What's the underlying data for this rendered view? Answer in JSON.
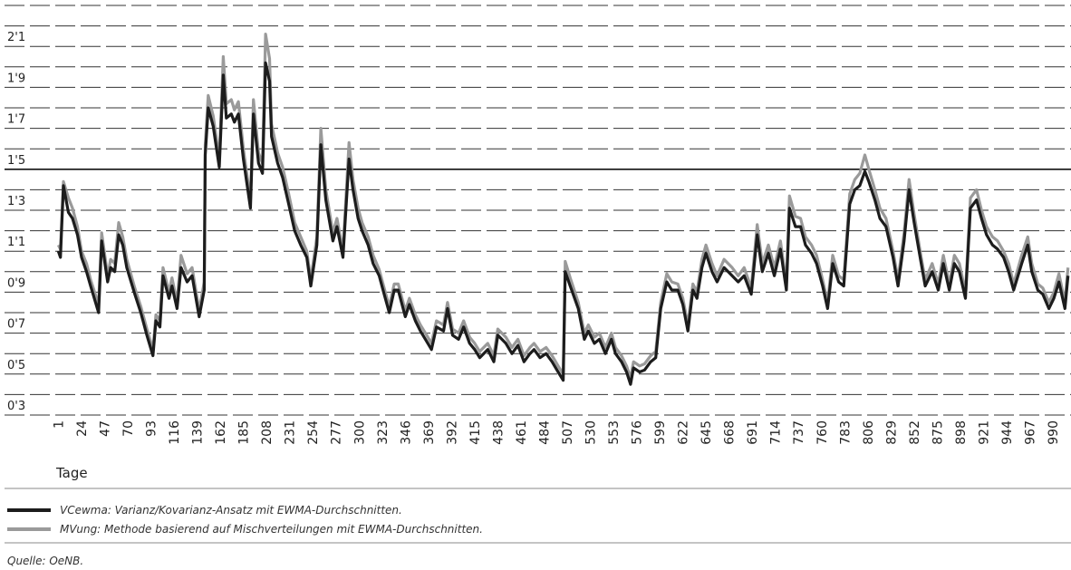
{
  "chart_data": {
    "type": "line",
    "x_label": "Tage",
    "xlim": [
      -3,
      1008
    ],
    "xticks": [
      1,
      24,
      47,
      70,
      93,
      116,
      139,
      162,
      185,
      208,
      231,
      254,
      277,
      300,
      323,
      346,
      369,
      392,
      415,
      438,
      461,
      484,
      507,
      530,
      553,
      576,
      599,
      622,
      645,
      668,
      691,
      714,
      737,
      760,
      783,
      806,
      829,
      852,
      875,
      898,
      921,
      944,
      967,
      990
    ],
    "ylim": [
      0.3,
      2.3
    ],
    "yticks": [
      {
        "value": 0.3,
        "label": "0'3"
      },
      {
        "value": 0.5,
        "label": "0'5"
      },
      {
        "value": 0.7,
        "label": "0'7"
      },
      {
        "value": 0.9,
        "label": "0'9"
      },
      {
        "value": 1.1,
        "label": "1'1"
      },
      {
        "value": 1.3,
        "label": "1'3"
      },
      {
        "value": 1.5,
        "label": "1'5"
      },
      {
        "value": 1.7,
        "label": "1'7"
      },
      {
        "value": 1.9,
        "label": "1'9"
      },
      {
        "value": 2.1,
        "label": "2'1"
      }
    ],
    "ygrid": [
      0.3,
      0.4,
      0.5,
      0.6,
      0.7,
      0.8,
      0.9,
      1.0,
      1.1,
      1.2,
      1.3,
      1.4,
      1.5,
      1.6,
      1.7,
      1.8,
      1.9,
      2.0,
      2.1,
      2.2,
      2.3
    ],
    "grid": true,
    "reference_line": 1.5,
    "x": [
      1,
      3,
      6,
      11,
      15,
      20,
      24,
      29,
      33,
      41,
      44,
      50,
      53,
      57,
      61,
      65,
      69,
      77,
      83,
      89,
      95,
      98,
      102,
      105,
      111,
      114,
      119,
      123,
      129,
      134,
      141,
      146,
      147,
      150,
      155,
      161,
      165,
      168,
      173,
      176,
      180,
      185,
      192,
      195,
      200,
      204,
      207,
      211,
      213,
      219,
      224,
      230,
      236,
      242,
      248,
      252,
      258,
      262,
      267,
      274,
      278,
      284,
      290,
      294,
      299,
      303,
      309,
      314,
      320,
      325,
      330,
      335,
      339,
      346,
      350,
      356,
      361,
      366,
      372,
      377,
      384,
      388,
      393,
      399,
      404,
      410,
      415,
      420,
      428,
      434,
      438,
      446,
      452,
      458,
      464,
      470,
      474,
      480,
      486,
      492,
      498,
      503,
      505,
      510,
      518,
      524,
      528,
      534,
      539,
      545,
      551,
      555,
      561,
      566,
      570,
      573,
      579,
      584,
      590,
      595,
      600,
      606,
      611,
      617,
      622,
      627,
      632,
      636,
      641,
      645,
      651,
      656,
      663,
      671,
      677,
      683,
      690,
      696,
      701,
      707,
      713,
      719,
      725,
      728,
      734,
      739,
      744,
      750,
      755,
      761,
      766,
      771,
      777,
      782,
      788,
      793,
      798,
      803,
      807,
      813,
      818,
      824,
      831,
      836,
      842,
      847,
      852,
      858,
      863,
      870,
      876,
      881,
      887,
      892,
      897,
      903,
      908,
      914,
      919,
      924,
      930,
      935,
      941,
      946,
      951,
      959,
      965,
      969,
      975,
      980,
      986,
      991,
      996,
      1002,
      1005
    ],
    "series": [
      {
        "name": "VCewma: Varianz/Kovarianz-Ansatz mit EWMA-Durchschnitten.",
        "color": "#1c1c1c",
        "values": [
          1.1,
          1.07,
          1.42,
          1.29,
          1.26,
          1.18,
          1.07,
          1.0,
          0.93,
          0.8,
          1.15,
          0.95,
          1.02,
          1.0,
          1.18,
          1.13,
          1.02,
          0.89,
          0.8,
          0.69,
          0.59,
          0.76,
          0.73,
          0.98,
          0.87,
          0.93,
          0.82,
          1.02,
          0.95,
          0.98,
          0.78,
          0.91,
          1.57,
          1.8,
          1.71,
          1.51,
          1.96,
          1.75,
          1.77,
          1.73,
          1.77,
          1.55,
          1.31,
          1.77,
          1.53,
          1.48,
          2.02,
          1.93,
          1.66,
          1.53,
          1.46,
          1.33,
          1.2,
          1.13,
          1.07,
          0.93,
          1.13,
          1.62,
          1.35,
          1.15,
          1.22,
          1.07,
          1.55,
          1.4,
          1.26,
          1.2,
          1.13,
          1.04,
          0.98,
          0.89,
          0.8,
          0.91,
          0.91,
          0.78,
          0.84,
          0.76,
          0.71,
          0.67,
          0.62,
          0.73,
          0.71,
          0.82,
          0.69,
          0.67,
          0.73,
          0.65,
          0.62,
          0.58,
          0.62,
          0.56,
          0.69,
          0.65,
          0.6,
          0.64,
          0.56,
          0.6,
          0.62,
          0.58,
          0.6,
          0.56,
          0.51,
          0.47,
          1.0,
          0.93,
          0.82,
          0.67,
          0.71,
          0.65,
          0.67,
          0.6,
          0.67,
          0.6,
          0.56,
          0.51,
          0.45,
          0.53,
          0.51,
          0.52,
          0.56,
          0.58,
          0.82,
          0.95,
          0.91,
          0.91,
          0.84,
          0.71,
          0.91,
          0.87,
          1.02,
          1.09,
          1.0,
          0.95,
          1.02,
          0.98,
          0.95,
          0.98,
          0.89,
          1.18,
          1.0,
          1.09,
          0.98,
          1.11,
          0.91,
          1.31,
          1.22,
          1.22,
          1.13,
          1.09,
          1.04,
          0.93,
          0.82,
          1.04,
          0.95,
          0.93,
          1.33,
          1.4,
          1.42,
          1.49,
          1.44,
          1.35,
          1.26,
          1.22,
          1.07,
          0.93,
          1.15,
          1.4,
          1.24,
          1.07,
          0.93,
          1.0,
          0.91,
          1.04,
          0.91,
          1.04,
          1.0,
          0.87,
          1.31,
          1.35,
          1.26,
          1.18,
          1.13,
          1.11,
          1.07,
          1.0,
          0.91,
          1.04,
          1.13,
          1.0,
          0.91,
          0.89,
          0.82,
          0.87,
          0.95,
          0.82,
          0.98
        ]
      },
      {
        "name": "MVung: Methode basierend auf Mischverteilungen mit EWMA-Durchschnitten.",
        "color": "#9a9a9a",
        "values": [
          1.13,
          1.11,
          1.44,
          1.36,
          1.31,
          1.22,
          1.1,
          1.04,
          0.96,
          0.84,
          1.19,
          0.98,
          1.06,
          1.04,
          1.24,
          1.17,
          1.06,
          0.92,
          0.83,
          0.72,
          0.62,
          0.79,
          0.76,
          1.02,
          0.9,
          0.97,
          0.85,
          1.08,
          0.99,
          1.02,
          0.81,
          0.95,
          1.62,
          1.86,
          1.76,
          1.55,
          2.05,
          1.82,
          1.84,
          1.79,
          1.83,
          1.6,
          1.35,
          1.84,
          1.58,
          1.53,
          2.16,
          2.04,
          1.72,
          1.58,
          1.51,
          1.38,
          1.24,
          1.17,
          1.1,
          0.96,
          1.17,
          1.7,
          1.4,
          1.19,
          1.26,
          1.1,
          1.63,
          1.45,
          1.31,
          1.24,
          1.17,
          1.08,
          1.01,
          0.92,
          0.83,
          0.94,
          0.94,
          0.81,
          0.87,
          0.79,
          0.74,
          0.7,
          0.65,
          0.76,
          0.74,
          0.85,
          0.72,
          0.7,
          0.76,
          0.68,
          0.65,
          0.61,
          0.65,
          0.59,
          0.72,
          0.68,
          0.63,
          0.67,
          0.59,
          0.63,
          0.65,
          0.61,
          0.63,
          0.59,
          0.54,
          0.5,
          1.05,
          0.97,
          0.85,
          0.7,
          0.74,
          0.68,
          0.7,
          0.63,
          0.7,
          0.63,
          0.59,
          0.54,
          0.48,
          0.56,
          0.54,
          0.55,
          0.59,
          0.61,
          0.85,
          0.99,
          0.95,
          0.94,
          0.87,
          0.74,
          0.94,
          0.9,
          1.06,
          1.13,
          1.04,
          0.98,
          1.06,
          1.02,
          0.98,
          1.02,
          0.92,
          1.23,
          1.04,
          1.13,
          1.02,
          1.15,
          0.94,
          1.37,
          1.27,
          1.26,
          1.17,
          1.13,
          1.08,
          0.96,
          0.85,
          1.08,
          0.98,
          0.96,
          1.38,
          1.45,
          1.48,
          1.57,
          1.5,
          1.4,
          1.31,
          1.26,
          1.1,
          0.96,
          1.19,
          1.45,
          1.28,
          1.1,
          0.96,
          1.04,
          0.94,
          1.08,
          0.94,
          1.08,
          1.04,
          0.9,
          1.36,
          1.4,
          1.3,
          1.22,
          1.17,
          1.15,
          1.1,
          1.04,
          0.94,
          1.08,
          1.17,
          1.04,
          0.94,
          0.92,
          0.85,
          0.9,
          0.99,
          0.85,
          1.02
        ]
      }
    ],
    "source": "Quelle: OeNB."
  }
}
